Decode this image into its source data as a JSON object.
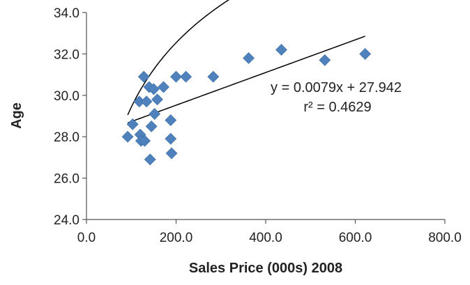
{
  "chart_data": {
    "type": "scatter",
    "title": "",
    "xlabel": "Sales Price (000s) 2008",
    "ylabel": "Age",
    "xlim": [
      0,
      800
    ],
    "ylim": [
      24,
      34
    ],
    "x_ticks": [
      0,
      200,
      400,
      600,
      800
    ],
    "y_ticks": [
      24,
      26,
      28,
      30,
      32,
      34
    ],
    "x_tick_labels": [
      "0.0",
      "200.0",
      "400.0",
      "600.0",
      "800.0"
    ],
    "y_tick_labels": [
      "24.0",
      "26.0",
      "28.0",
      "30.0",
      "32.0",
      "34.0"
    ],
    "grid": false,
    "marker": "diamond",
    "marker_color": "#4f81bd",
    "trendline_color": "#000000",
    "series": [
      {
        "points": [
          {
            "x": 92,
            "y": 28.0
          },
          {
            "x": 103,
            "y": 28.6
          },
          {
            "x": 118,
            "y": 29.7
          },
          {
            "x": 120,
            "y": 28.1
          },
          {
            "x": 122,
            "y": 27.8
          },
          {
            "x": 128,
            "y": 30.9
          },
          {
            "x": 130,
            "y": 27.8
          },
          {
            "x": 134,
            "y": 29.7
          },
          {
            "x": 140,
            "y": 30.4
          },
          {
            "x": 142,
            "y": 26.9
          },
          {
            "x": 145,
            "y": 28.5
          },
          {
            "x": 150,
            "y": 30.3
          },
          {
            "x": 152,
            "y": 29.1
          },
          {
            "x": 158,
            "y": 29.8
          },
          {
            "x": 172,
            "y": 30.4
          },
          {
            "x": 188,
            "y": 28.8
          },
          {
            "x": 188,
            "y": 27.9
          },
          {
            "x": 190,
            "y": 27.2
          },
          {
            "x": 200,
            "y": 30.9
          },
          {
            "x": 222,
            "y": 30.9
          },
          {
            "x": 283,
            "y": 30.9
          },
          {
            "x": 362,
            "y": 31.8
          },
          {
            "x": 435,
            "y": 32.2
          },
          {
            "x": 532,
            "y": 31.7
          },
          {
            "x": 622,
            "y": 32.0
          }
        ]
      }
    ],
    "trendlines": [
      {
        "type": "linear",
        "slope": 0.0079,
        "intercept": 27.942,
        "x_range": [
          92,
          622
        ]
      },
      {
        "type": "logarithmic",
        "a": 4.49,
        "b": 8.75,
        "x_range": [
          92,
          622
        ]
      }
    ],
    "annotations": [
      {
        "text": "y = 0.0079x + 27.942"
      },
      {
        "text": "r² = 0.4629"
      }
    ]
  }
}
